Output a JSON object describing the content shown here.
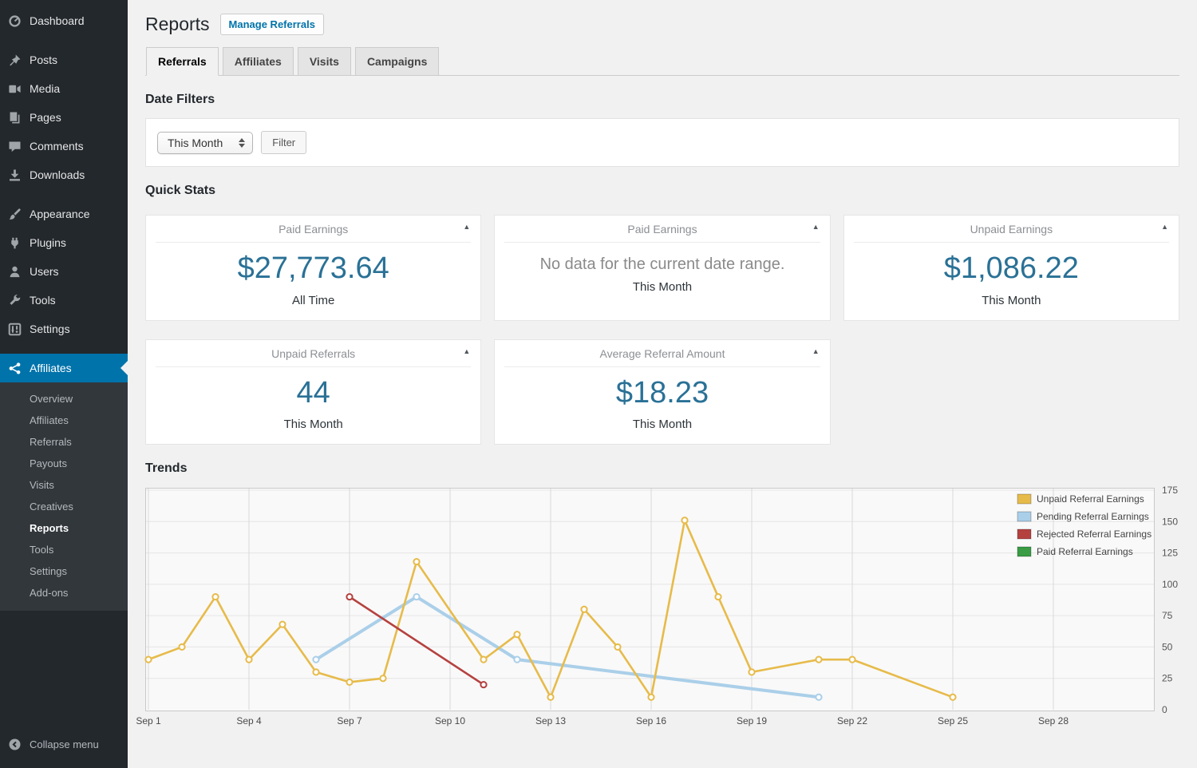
{
  "sidebar": {
    "items": [
      {
        "label": "Dashboard",
        "icon": "dashboard-gauge-icon",
        "sep": false,
        "active": false
      },
      {
        "label": "Posts",
        "icon": "pushpin-icon",
        "sep": true,
        "active": false
      },
      {
        "label": "Media",
        "icon": "media-icon",
        "sep": false,
        "active": false
      },
      {
        "label": "Pages",
        "icon": "pages-icon",
        "sep": false,
        "active": false
      },
      {
        "label": "Comments",
        "icon": "comment-icon",
        "sep": false,
        "active": false
      },
      {
        "label": "Downloads",
        "icon": "download-icon",
        "sep": false,
        "active": false
      },
      {
        "label": "Appearance",
        "icon": "brush-icon",
        "sep": true,
        "active": false
      },
      {
        "label": "Plugins",
        "icon": "plugin-icon",
        "sep": false,
        "active": false
      },
      {
        "label": "Users",
        "icon": "user-icon",
        "sep": false,
        "active": false
      },
      {
        "label": "Tools",
        "icon": "wrench-icon",
        "sep": false,
        "active": false
      },
      {
        "label": "Settings",
        "icon": "settings-icon",
        "sep": false,
        "active": false
      },
      {
        "label": "Affiliates",
        "icon": "affiliates-network-icon",
        "sep": true,
        "active": true
      }
    ],
    "submenu": {
      "items": [
        "Overview",
        "Affiliates",
        "Referrals",
        "Payouts",
        "Visits",
        "Creatives",
        "Reports",
        "Tools",
        "Settings",
        "Add-ons"
      ],
      "current": "Reports"
    },
    "collapse": {
      "label": "Collapse menu",
      "icon": "collapse-arrow-icon"
    },
    "colors": {
      "bg": "#23282d",
      "submenu_bg": "#32373c",
      "active_bg": "#0073aa"
    }
  },
  "header": {
    "title": "Reports",
    "manage_button": "Manage Referrals"
  },
  "tabs": [
    {
      "label": "Referrals",
      "active": true
    },
    {
      "label": "Affiliates",
      "active": false
    },
    {
      "label": "Visits",
      "active": false
    },
    {
      "label": "Campaigns",
      "active": false
    }
  ],
  "date_filters": {
    "heading": "Date Filters",
    "select_value": "This Month",
    "filter_button": "Filter"
  },
  "quick_stats": {
    "heading": "Quick Stats",
    "value_color": "#2a7196",
    "toggle_icon": "collapse-triangle-icon",
    "cards": [
      {
        "title": "Paid Earnings",
        "value": "$27,773.64",
        "period": "All Time"
      },
      {
        "title": "Paid Earnings",
        "empty_text": "No data for the current date range.",
        "period": "This Month"
      },
      {
        "title": "Unpaid Earnings",
        "value": "$1,086.22",
        "period": "This Month"
      },
      {
        "title": "Unpaid Referrals",
        "value": "44",
        "period": "This Month"
      },
      {
        "title": "Average Referral Amount",
        "value": "$18.23",
        "period": "This Month"
      }
    ]
  },
  "trends": {
    "heading": "Trends"
  },
  "chart_data": {
    "type": "line",
    "title": "Trends",
    "x_axis": {
      "labels": [
        "Sep 1",
        "Sep 4",
        "Sep 7",
        "Sep 10",
        "Sep 13",
        "Sep 16",
        "Sep 19",
        "Sep 22",
        "Sep 25",
        "Sep 28"
      ],
      "label_days": [
        1,
        4,
        7,
        10,
        13,
        16,
        19,
        22,
        25,
        28
      ]
    },
    "ylim": [
      0,
      175
    ],
    "yticks": [
      0,
      25,
      50,
      75,
      100,
      125,
      150,
      175
    ],
    "grid": true,
    "legend_position": "top-right",
    "series": [
      {
        "name": "Unpaid Referral Earnings",
        "color": "#e7bb4a",
        "points": [
          [
            1,
            40
          ],
          [
            2,
            50
          ],
          [
            3,
            90
          ],
          [
            4,
            40
          ],
          [
            5,
            68
          ],
          [
            6,
            30
          ],
          [
            7,
            22
          ],
          [
            8,
            25
          ],
          [
            9,
            118
          ],
          [
            11,
            40
          ],
          [
            12,
            60
          ],
          [
            13,
            10
          ],
          [
            14,
            80
          ],
          [
            15,
            50
          ],
          [
            16,
            10
          ],
          [
            17,
            151
          ],
          [
            18,
            90
          ],
          [
            19,
            30
          ],
          [
            21,
            40
          ],
          [
            22,
            40
          ],
          [
            25,
            10
          ]
        ]
      },
      {
        "name": "Pending Referral Earnings",
        "color": "#aacfe9",
        "points": [
          [
            6,
            40
          ],
          [
            9,
            90
          ],
          [
            12,
            40
          ],
          [
            21,
            10
          ]
        ]
      },
      {
        "name": "Rejected Referral Earnings",
        "color": "#b5413f",
        "points": [
          [
            7,
            90
          ],
          [
            11,
            20
          ]
        ]
      },
      {
        "name": "Paid Referral Earnings",
        "color": "#3a9c45",
        "points": []
      }
    ]
  }
}
